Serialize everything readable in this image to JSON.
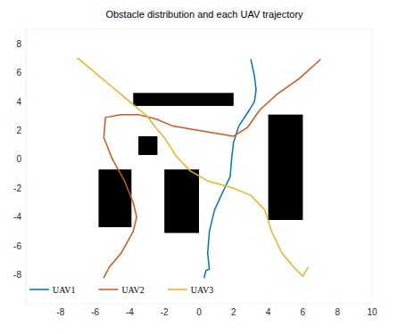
{
  "chart_data": {
    "type": "line",
    "title": "Obstacle distribution and each UAV trajectory",
    "xlim": [
      -10,
      10
    ],
    "ylim": [
      -10,
      9
    ],
    "xticks": [
      -8,
      -6,
      -4,
      -2,
      0,
      2,
      4,
      6,
      8,
      10
    ],
    "yticks": [
      -8,
      -6,
      -4,
      -2,
      0,
      2,
      4,
      6,
      8
    ],
    "grid": false,
    "legend": "lower left",
    "obstacles": [
      {
        "x": [
          -3.8,
          2.0
        ],
        "y": [
          3.7,
          4.6
        ]
      },
      {
        "x": [
          -3.5,
          -2.4
        ],
        "y": [
          0.3,
          1.6
        ]
      },
      {
        "x": [
          -5.8,
          -3.9
        ],
        "y": [
          -4.7,
          -0.7
        ]
      },
      {
        "x": [
          -2.0,
          0.0
        ],
        "y": [
          -5.1,
          -0.7
        ]
      },
      {
        "x": [
          4.0,
          6.0
        ],
        "y": [
          -4.2,
          3.1
        ]
      }
    ],
    "series": [
      {
        "name": "UAV1",
        "color": "#0072bd",
        "x": [
          0.3,
          0.4,
          0.6,
          0.5,
          0.6,
          0.9,
          1.4,
          1.8,
          1.9,
          2.0,
          2.3,
          2.9,
          3.2,
          3.3,
          3.2,
          3.0
        ],
        "values": [
          -8.2,
          -7.7,
          -7.6,
          -6.5,
          -5.0,
          -3.5,
          -2.2,
          -1.2,
          0.2,
          1.2,
          2.3,
          3.4,
          4.0,
          4.8,
          5.8,
          6.9
        ]
      },
      {
        "name": "UAV2",
        "color": "#d95319",
        "x": [
          -5.5,
          -5.2,
          -4.5,
          -3.8,
          -3.6,
          -3.8,
          -4.3,
          -5.0,
          -5.5,
          -5.4,
          -4.5,
          -3.5,
          -2.5,
          -1.5,
          0.0,
          1.0,
          2.0,
          2.8,
          3.5,
          4.5,
          5.8,
          7.0
        ],
        "values": [
          -8.2,
          -7.5,
          -6.5,
          -5.0,
          -4.0,
          -3.0,
          -1.5,
          0.0,
          1.5,
          2.9,
          3.1,
          3.1,
          2.8,
          2.3,
          2.0,
          1.8,
          1.6,
          2.2,
          3.4,
          4.5,
          5.6,
          6.9
        ]
      },
      {
        "name": "UAV3",
        "color": "#edb120",
        "x": [
          -7.0,
          -5.5,
          -4.0,
          -3.0,
          -2.5,
          -2.0,
          -1.3,
          -0.5,
          0.5,
          2.0,
          3.0,
          3.8,
          4.2,
          4.8,
          5.5,
          6.0,
          6.3
        ],
        "values": [
          7.0,
          5.5,
          4.0,
          3.0,
          2.2,
          1.5,
          0.2,
          -0.8,
          -1.5,
          -2.0,
          -2.5,
          -3.5,
          -5.0,
          -6.5,
          -7.5,
          -8.1,
          -7.5
        ]
      }
    ]
  }
}
